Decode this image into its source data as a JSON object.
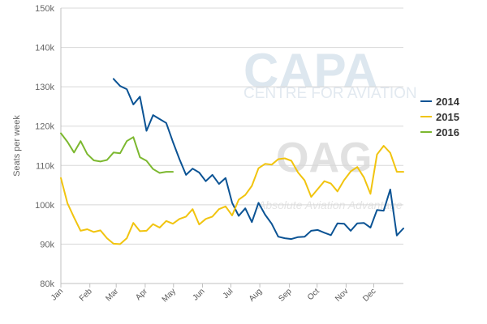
{
  "chart_data": {
    "type": "line",
    "ylabel": "Seats per week",
    "xlabel": "",
    "ylim": [
      80000,
      150000
    ],
    "y_ticks": [
      {
        "value": 80000,
        "label": "80k"
      },
      {
        "value": 90000,
        "label": "90k"
      },
      {
        "value": 100000,
        "label": "100k"
      },
      {
        "value": 110000,
        "label": "110k"
      },
      {
        "value": 120000,
        "label": "120k"
      },
      {
        "value": 130000,
        "label": "130k"
      },
      {
        "value": 140000,
        "label": "140k"
      },
      {
        "value": 150000,
        "label": "150k"
      }
    ],
    "x_unit": "week of year",
    "xlim": [
      1,
      53
    ],
    "x_ticks": [
      {
        "week": 1,
        "label": "Jan"
      },
      {
        "week": 5.4,
        "label": "Feb"
      },
      {
        "week": 9.4,
        "label": "Mar"
      },
      {
        "week": 13.8,
        "label": "Apr"
      },
      {
        "week": 18.1,
        "label": "May"
      },
      {
        "week": 22.5,
        "label": "Jun"
      },
      {
        "week": 26.8,
        "label": "Jul"
      },
      {
        "week": 31.2,
        "label": "Aug"
      },
      {
        "week": 35.7,
        "label": "Sep"
      },
      {
        "week": 39.9,
        "label": "Oct"
      },
      {
        "week": 44.3,
        "label": "Nov"
      },
      {
        "week": 48.5,
        "label": "Dec"
      }
    ],
    "grid": true,
    "legend_position": "right",
    "series": [
      {
        "name": "2014",
        "color": "#0b5394",
        "x": [
          9,
          10,
          11,
          12,
          13,
          14,
          15,
          16,
          17,
          18,
          19,
          20,
          21,
          22,
          23,
          24,
          25,
          26,
          27,
          28,
          29,
          30,
          31,
          32,
          33,
          34,
          35,
          36,
          37,
          38,
          39,
          40,
          41,
          42,
          43,
          44,
          45,
          46,
          47,
          48,
          49,
          50,
          51,
          52,
          53
        ],
        "values": [
          132000,
          130200,
          129400,
          125500,
          127500,
          118800,
          122800,
          121800,
          120800,
          116000,
          111600,
          107600,
          109200,
          108200,
          106000,
          107600,
          105300,
          106800,
          100500,
          97200,
          99100,
          95600,
          100500,
          97500,
          95200,
          91900,
          91500,
          91300,
          91800,
          91900,
          93400,
          93600,
          92900,
          92300,
          95300,
          95200,
          93400,
          95300,
          95400,
          94200,
          98700,
          98500,
          103900,
          92200,
          94000
        ]
      },
      {
        "name": "2015",
        "color": "#f1c40f",
        "x": [
          1,
          2,
          3,
          4,
          5,
          6,
          7,
          8,
          9,
          10,
          11,
          12,
          13,
          14,
          15,
          16,
          17,
          18,
          19,
          20,
          21,
          22,
          23,
          24,
          25,
          26,
          27,
          28,
          29,
          30,
          31,
          32,
          33,
          34,
          35,
          36,
          37,
          38,
          39,
          40,
          41,
          42,
          43,
          44,
          45,
          46,
          47,
          48,
          49,
          50,
          51,
          52,
          53
        ],
        "values": [
          106800,
          100400,
          96800,
          93400,
          93800,
          93100,
          93500,
          91500,
          90100,
          90000,
          91500,
          95400,
          93300,
          93400,
          95100,
          94200,
          95900,
          95200,
          96400,
          97000,
          98900,
          95000,
          96400,
          97000,
          98900,
          99600,
          97300,
          101300,
          102500,
          104800,
          109300,
          110400,
          110200,
          111600,
          111800,
          111200,
          108200,
          106200,
          102000,
          104000,
          106000,
          105400,
          103400,
          106300,
          108500,
          109600,
          107000,
          102800,
          112800,
          115000,
          113200,
          108400,
          108400
        ]
      },
      {
        "name": "2016",
        "color": "#7cb82f",
        "x": [
          1,
          2,
          3,
          4,
          5,
          6,
          7,
          8,
          9,
          10,
          11,
          12,
          13,
          14,
          15,
          16,
          17,
          18
        ],
        "values": [
          118200,
          116000,
          113300,
          116200,
          112900,
          111300,
          111000,
          111400,
          113300,
          113100,
          116200,
          117200,
          112100,
          111200,
          109100,
          108100,
          108400,
          108400
        ]
      }
    ],
    "watermarks": {
      "capa_logo": "CAPA",
      "capa_tagline": "CENTRE FOR AVIATION",
      "oag_logo": "OAG",
      "oag_tagline": "Absolute Aviation Advantage"
    }
  }
}
